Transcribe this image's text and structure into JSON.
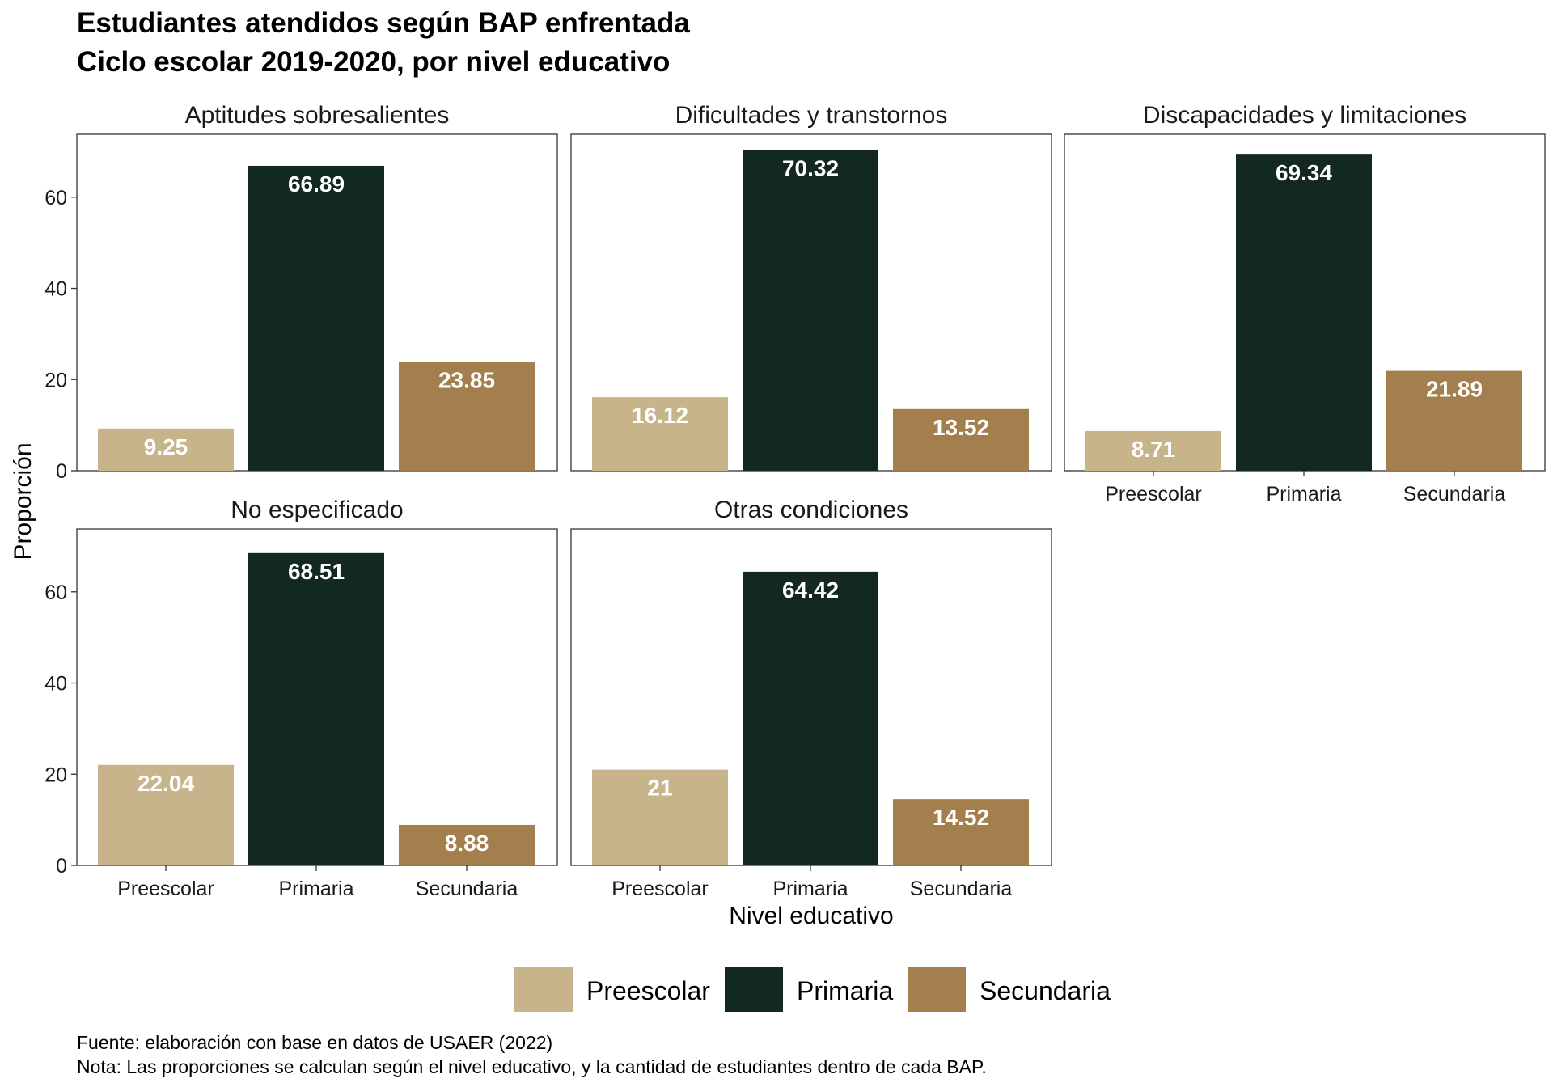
{
  "chart_data": {
    "type": "bar",
    "title": "Estudiantes atendidos según BAP enfrentada",
    "subtitle": "Ciclo escolar 2019-2020, por nivel educativo",
    "xlabel": "Nivel educativo",
    "ylabel": "Proporción",
    "categories": [
      "Preescolar",
      "Primaria",
      "Secundaria"
    ],
    "ylim": [
      0,
      73.8
    ],
    "yticks": [
      0,
      20,
      40,
      60
    ],
    "colors": {
      "Preescolar": "#c8b48a",
      "Primaria": "#132821",
      "Secundaria": "#a37f4e"
    },
    "legend": {
      "position": "bottom",
      "items": [
        "Preescolar",
        "Primaria",
        "Secundaria"
      ]
    },
    "grid": false,
    "panels": [
      {
        "name": "Aptitudes sobresalientes",
        "values": [
          9.25,
          66.89,
          23.85
        ],
        "labels": [
          "9.25",
          "66.89",
          "23.85"
        ]
      },
      {
        "name": "Dificultades y transtornos",
        "values": [
          16.12,
          70.32,
          13.52
        ],
        "labels": [
          "16.12",
          "70.32",
          "13.52"
        ]
      },
      {
        "name": "Discapacidades y limitaciones",
        "values": [
          8.71,
          69.34,
          21.89
        ],
        "labels": [
          "8.71",
          "69.34",
          "21.89"
        ]
      },
      {
        "name": "No especificado",
        "values": [
          22.04,
          68.51,
          8.88
        ],
        "labels": [
          "22.04",
          "68.51",
          "8.88"
        ]
      },
      {
        "name": "Otras condiciones",
        "values": [
          21,
          64.42,
          14.52
        ],
        "labels": [
          "21",
          "64.42",
          "14.52"
        ]
      }
    ]
  },
  "caption": {
    "source": "Fuente: elaboración con base en datos de USAER (2022)",
    "note": "Nota: Las proporciones se calculan según el nivel educativo, y la cantidad de estudiantes dentro de cada BAP."
  }
}
